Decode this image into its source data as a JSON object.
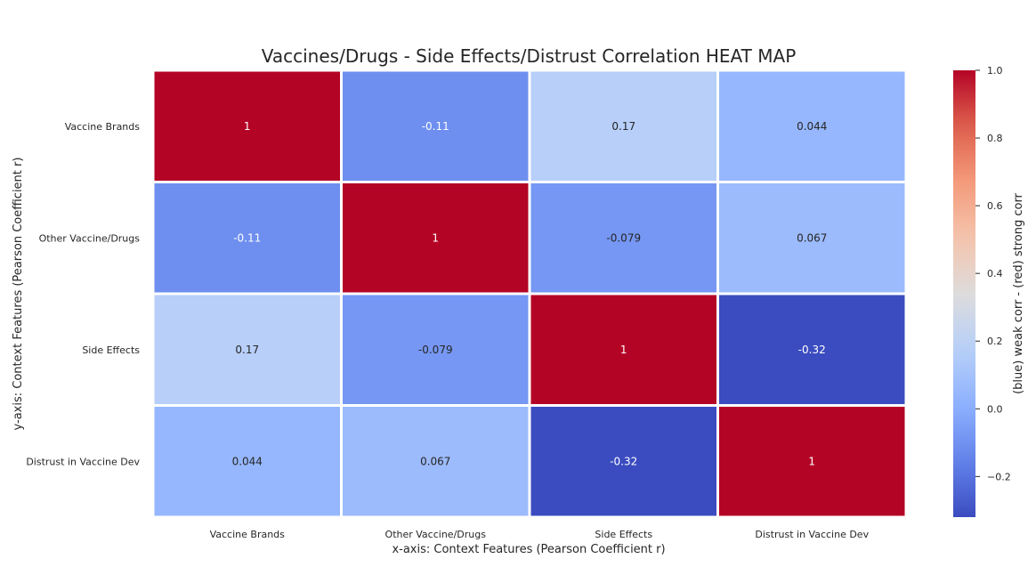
{
  "chart_data": {
    "type": "heatmap",
    "title": "Vaccines/Drugs - Side Effects/Distrust Correlation HEAT MAP",
    "xlabel": "x-axis: Context Features (Pearson Coefficient r)",
    "ylabel": "y-axis: Context Features (Pearson Coefficient r)",
    "x_categories": [
      "Vaccine Brands",
      "Other Vaccine/Drugs",
      "Side Effects",
      "Distrust in Vaccine Dev"
    ],
    "y_categories": [
      "Vaccine Brands",
      "Other Vaccine/Drugs",
      "Side Effects",
      "Distrust in Vaccine Dev"
    ],
    "values": [
      [
        1,
        -0.11,
        0.17,
        0.044
      ],
      [
        -0.11,
        1,
        -0.079,
        0.067
      ],
      [
        0.17,
        -0.079,
        1,
        -0.32
      ],
      [
        0.044,
        0.067,
        -0.32,
        1
      ]
    ],
    "cell_labels": [
      [
        "1",
        "-0.11",
        "0.17",
        "0.044"
      ],
      [
        "-0.11",
        "1",
        "-0.079",
        "0.067"
      ],
      [
        "0.17",
        "-0.079",
        "1",
        "-0.32"
      ],
      [
        "0.044",
        "0.067",
        "-0.32",
        "1"
      ]
    ],
    "colormap": "coolwarm",
    "vmin": -0.32,
    "vmax": 1,
    "colorbar": {
      "label": "(blue) weak corr - (red) strong corr",
      "ticks": [
        -0.2,
        0.0,
        0.2,
        0.4,
        0.6,
        0.8,
        1.0
      ],
      "tick_labels": [
        "−0.2",
        "0.0",
        "0.2",
        "0.4",
        "0.6",
        "0.8",
        "1.0"
      ]
    },
    "colors": {
      "cold": "#3b4cc0",
      "neutral": "#dddcdc",
      "hot": "#b40426",
      "cell_border": "#ffffff",
      "text": "#262626"
    }
  }
}
